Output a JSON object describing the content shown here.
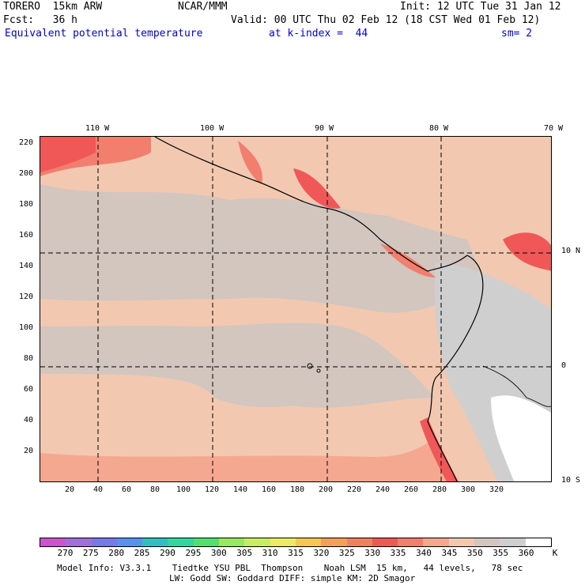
{
  "header": {
    "model": "TORERO  15km ARW",
    "center": "NCAR/MMM",
    "init": "Init: 12 UTC Tue 31 Jan 12",
    "fcst": "Fcst:   36 h",
    "valid": "Valid: 00 UTC Thu 02 Feb 12 (18 CST Wed 01 Feb 12)",
    "field": "Equivalent potential temperature",
    "level": "at k-index =  44",
    "smoothing": "sm= 2"
  },
  "map": {
    "top_lon_labels": [
      "110 W",
      "100 W",
      "90 W",
      "80 W",
      "70 W"
    ],
    "right_lat_labels": [
      "10 N",
      "0",
      "10 S"
    ],
    "left_y_ticks": [
      "220",
      "200",
      "180",
      "160",
      "140",
      "120",
      "100",
      "80",
      "60",
      "40",
      "20"
    ],
    "bottom_x_ticks": [
      "20",
      "40",
      "60",
      "80",
      "100",
      "120",
      "140",
      "160",
      "180",
      "200",
      "220",
      "240",
      "260",
      "280",
      "300",
      "320"
    ]
  },
  "colorbar": {
    "unit": "K",
    "labels": [
      "270",
      "275",
      "280",
      "285",
      "290",
      "295",
      "300",
      "305",
      "310",
      "315",
      "320",
      "325",
      "330",
      "335",
      "340",
      "345",
      "350",
      "355",
      "360"
    ],
    "colors": [
      "#cc55cc",
      "#a070d8",
      "#7878e8",
      "#5a90f0",
      "#30c0c0",
      "#30d8a0",
      "#50e070",
      "#98e860",
      "#c8ee60",
      "#ecec60",
      "#f5c850",
      "#f5a058",
      "#f08060",
      "#f05858",
      "#f27e6e",
      "#f5a890",
      "#f2c8b0",
      "#d2c6bf",
      "#cfcfcf",
      "#ffffff"
    ]
  },
  "footer": {
    "line1": "Model Info: V3.3.1    Tiedtke YSU PBL  Thompson    Noah LSM  15 km,   44 levels,   78 sec",
    "line2": "LW: Godd SW: Goddard DIFF: simple KM: 2D Smagor"
  }
}
